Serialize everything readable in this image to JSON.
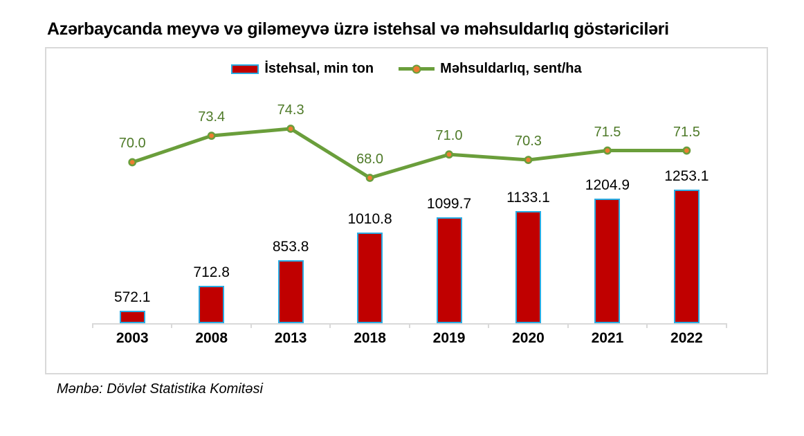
{
  "source_note": "Mənbə: Dövlət Statistika Komitəsi",
  "colors": {
    "bar_fill": "#C00000",
    "bar_border": "#29ABE2",
    "line": "#6A9E3B",
    "marker_fill": "#ED7D31",
    "line_label": "#4E7A28",
    "axis": "#D9D9D9",
    "text": "#000000"
  },
  "chart_data": {
    "type": "bar",
    "subtype": "bar+line combo",
    "title": "Azərbaycanda meyvə və giləmeyvə üzrə istehsal və məhsuldarlıq göstəriciləri",
    "categories": [
      "2003",
      "2008",
      "2013",
      "2018",
      "2019",
      "2020",
      "2021",
      "2022"
    ],
    "series": [
      {
        "name": "İstehsal, min ton",
        "type": "bar",
        "values": [
          572.1,
          712.8,
          853.8,
          1010.8,
          1099.7,
          1133.1,
          1204.9,
          1253.1
        ],
        "color": "#C00000",
        "border_color": "#29ABE2"
      },
      {
        "name": "Məhsuldarlıq, sent/ha",
        "type": "line",
        "values": [
          70.0,
          73.4,
          74.3,
          68.0,
          71.0,
          70.3,
          71.5,
          71.5
        ],
        "color": "#6A9E3B",
        "marker_color": "#ED7D31",
        "label_color": "#4E7A28"
      }
    ],
    "legend_position": "top-center",
    "gridlines": false,
    "value_axes_hidden": true,
    "data_labels_shown": true,
    "xlabel": "",
    "ylabel": ""
  }
}
